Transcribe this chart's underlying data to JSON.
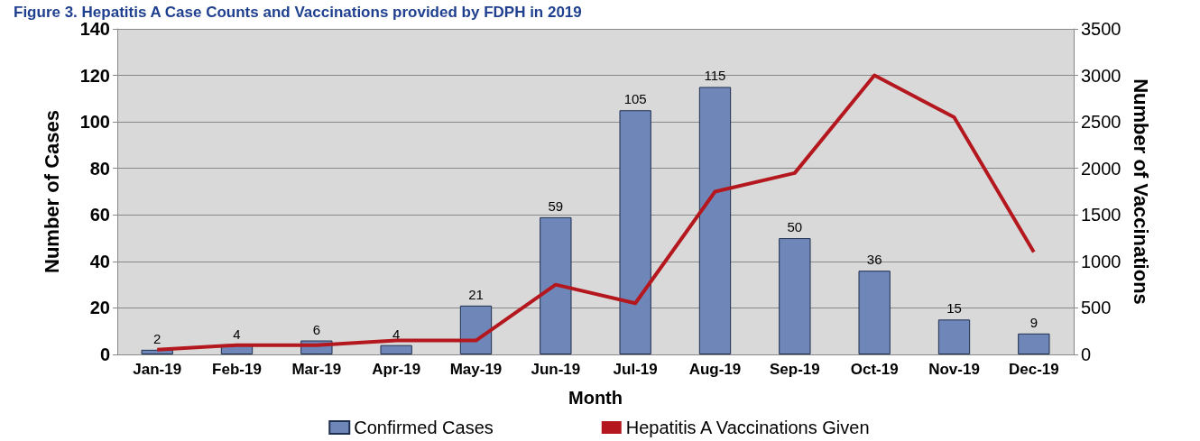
{
  "chart_data": {
    "type": "bar",
    "title": "Figure 3. Hepatitis A Case Counts and Vaccinations provided by FDPH in 2019",
    "xlabel": "Month",
    "ylabel": "Number of Cases",
    "y2label": "Number of Vaccinations",
    "categories": [
      "Jan-19",
      "Feb-19",
      "Mar-19",
      "Apr-19",
      "May-19",
      "Jun-19",
      "Jul-19",
      "Aug-19",
      "Sep-19",
      "Oct-19",
      "Nov-19",
      "Dec-19"
    ],
    "series": [
      {
        "name": "Confirmed Cases",
        "color": "#6f87b8",
        "values": [
          2,
          4,
          6,
          4,
          21,
          59,
          105,
          115,
          50,
          36,
          15,
          9
        ],
        "value_labels": [
          "2",
          "4",
          "6",
          "4",
          "21",
          "59",
          "105",
          "115",
          "50",
          "36",
          "15",
          "9"
        ]
      },
      {
        "name": "Hepatitis A Vaccinations Given",
        "type": "line",
        "axis": "y2",
        "color": "#b4181e",
        "values": [
          50,
          100,
          100,
          150,
          150,
          750,
          550,
          1750,
          1950,
          3000,
          2550,
          1100
        ]
      }
    ],
    "ylim": [
      0,
      140
    ],
    "yticks": [
      0,
      20,
      40,
      60,
      80,
      100,
      120,
      140
    ],
    "y2lim": [
      0,
      3500
    ],
    "y2ticks": [
      0,
      500,
      1000,
      1500,
      2000,
      2500,
      3000,
      3500
    ],
    "grid": "y",
    "legend": "bottom",
    "marker": "none"
  }
}
